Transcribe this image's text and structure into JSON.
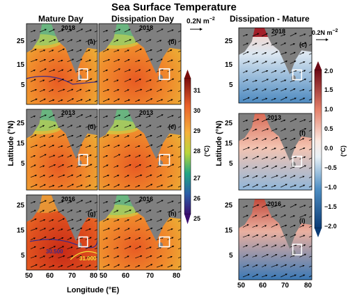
{
  "figure": {
    "title": "Sea Surface Temperature",
    "column_titles": [
      "Mature Day",
      "Dissipation Day",
      "Dissipation - Mature"
    ],
    "ref_vector": {
      "label_left": "0.2N m",
      "label_right": "0.2N m",
      "exponent": "−2"
    },
    "xlabel_left": "Longitude (°E)",
    "ylabel_left": "Latitude (°N)",
    "ylabel_right": "Latitude (°N)",
    "x_ticks": [
      "50",
      "60",
      "70",
      "80"
    ],
    "x_ticks_right": [
      "50",
      "60",
      "70",
      "80"
    ],
    "y_ticks": [
      "25",
      "15",
      "5"
    ],
    "panels": [
      {
        "year": "2018",
        "tag": "(a)"
      },
      {
        "year": "2018",
        "tag": "(b)"
      },
      {
        "year": "2018",
        "tag": "(c)"
      },
      {
        "year": "2013",
        "tag": "(d)"
      },
      {
        "year": "2013",
        "tag": "(e)"
      },
      {
        "year": "2013",
        "tag": "(f)"
      },
      {
        "year": "2016",
        "tag": "(g)"
      },
      {
        "year": "2016",
        "tag": "(h)"
      },
      {
        "year": "2016",
        "tag": "(i)"
      }
    ],
    "contour_labels": [
      "30.500",
      "31.000"
    ],
    "colorbar_sst": {
      "ticks": [
        "31",
        "30",
        "29",
        "28",
        "27",
        "26",
        "25"
      ],
      "unit": "(°C)"
    },
    "colorbar_diff": {
      "ticks": [
        "2.0",
        "1.5",
        "1.0",
        "0.5",
        "0.0",
        "−0.5",
        "−1.0",
        "−1.5",
        "−2.0"
      ],
      "unit": "(°C)"
    }
  }
}
